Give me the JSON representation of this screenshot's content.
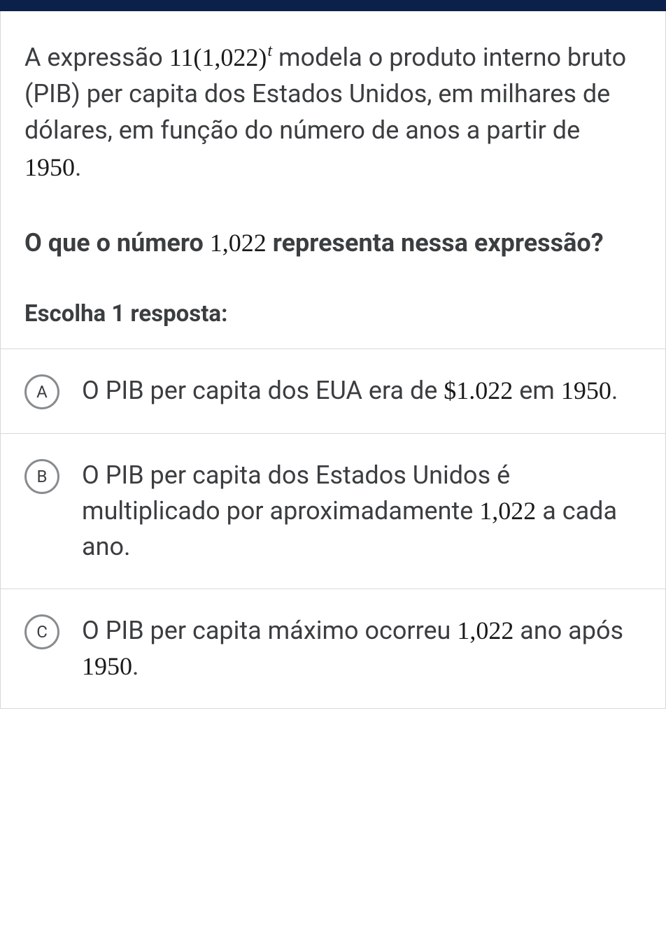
{
  "colors": {
    "topbar": "#0b214a",
    "border": "#d6d8da",
    "text": "#3b3e40",
    "math": "#1a1a1a",
    "radio_border": "#888c8f",
    "background": "#ffffff"
  },
  "intro": {
    "part1": "A expressão ",
    "expr_coef": "11",
    "expr_lparen": "(",
    "expr_base": "1,022",
    "expr_rparen": ")",
    "expr_exp": "t",
    "part2": " modela o produto interno bruto (PIB) per capita dos Estados Unidos, em milhares de dólares, em função do número de anos a partir de ",
    "year": "1950",
    "part3": "."
  },
  "question": {
    "part1": "O que o número ",
    "num": "1,022",
    "part2": " representa nessa expressão?"
  },
  "choose_label": "Escolha 1 resposta:",
  "options": [
    {
      "letter": "A",
      "text_parts": [
        {
          "t": "O PIB per capita dos EUA era de ",
          "math": false
        },
        {
          "t": "$1.022",
          "math": true
        },
        {
          "t": " em ",
          "math": false
        },
        {
          "t": "1950",
          "math": true
        },
        {
          "t": ".",
          "math": false
        }
      ]
    },
    {
      "letter": "B",
      "text_parts": [
        {
          "t": "O PIB per capita dos Estados Unidos é multiplicado por aproximadamente ",
          "math": false
        },
        {
          "t": "1,022",
          "math": true
        },
        {
          "t": " a cada ano.",
          "math": false
        }
      ]
    },
    {
      "letter": "C",
      "text_parts": [
        {
          "t": "O PIB per capita máximo ocorreu ",
          "math": false
        },
        {
          "t": "1,022",
          "math": true
        },
        {
          "t": " ano após ",
          "math": false
        },
        {
          "t": "1950",
          "math": true
        },
        {
          "t": ".",
          "math": false
        }
      ]
    }
  ]
}
